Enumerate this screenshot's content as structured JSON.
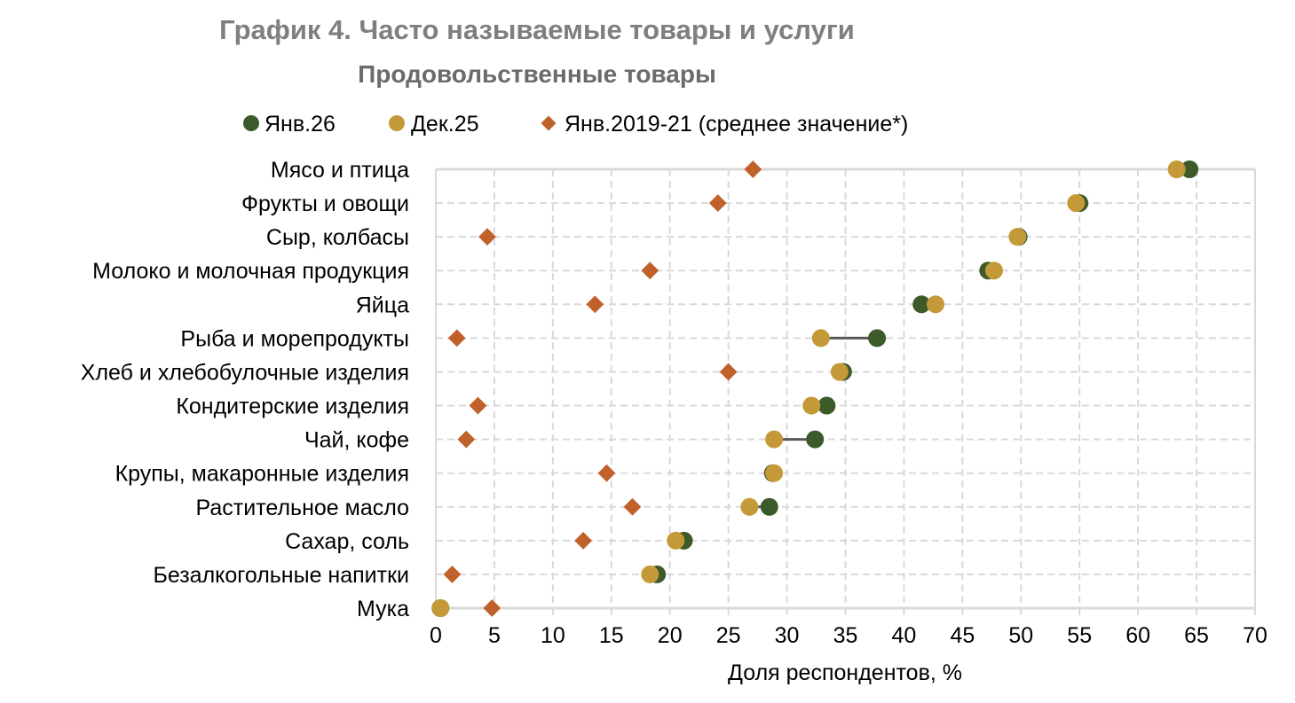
{
  "chart_data": {
    "type": "scatter",
    "title": "График 4. Часто называемые товары и услуги",
    "subtitle": "Продовольственные товары",
    "xlabel": "Доля респондентов, %",
    "ylabel": "",
    "xlim": [
      0,
      70
    ],
    "xticks": [
      0,
      5,
      10,
      15,
      20,
      25,
      30,
      35,
      40,
      45,
      50,
      55,
      60,
      65,
      70
    ],
    "grid": true,
    "legend_position": "top",
    "categories": [
      "Мясо и птица",
      "Фрукты и овощи",
      "Сыр, колбасы",
      "Молоко и молочная продукция",
      "Яйца",
      "Рыба и морепродукты",
      "Хлеб и хлебобулочные изделия",
      "Кондитерские изделия",
      "Чай, кофе",
      "Крупы, макаронные изделия",
      "Растительное масло",
      "Сахар, соль",
      "Безалкогольные напитки",
      "Мука"
    ],
    "series": [
      {
        "name": "Янв.26",
        "marker": "circle",
        "color": "#3d5a2a",
        "values": [
          64.4,
          55.0,
          49.8,
          47.2,
          41.5,
          37.7,
          34.8,
          33.4,
          32.4,
          28.8,
          28.5,
          21.2,
          18.9,
          0.4
        ]
      },
      {
        "name": "Дек.25",
        "marker": "circle",
        "color": "#c49a38",
        "values": [
          63.3,
          54.7,
          49.7,
          47.7,
          42.7,
          32.9,
          34.5,
          32.1,
          28.9,
          28.9,
          26.8,
          20.5,
          18.3,
          0.4
        ]
      },
      {
        "name": "Янв.2019-21 (среднее значение*)",
        "marker": "diamond",
        "color": "#c0612b",
        "values": [
          27.1,
          24.1,
          4.4,
          18.3,
          13.6,
          1.8,
          25.0,
          3.6,
          2.6,
          14.6,
          16.8,
          12.6,
          1.4,
          4.8
        ]
      }
    ]
  }
}
